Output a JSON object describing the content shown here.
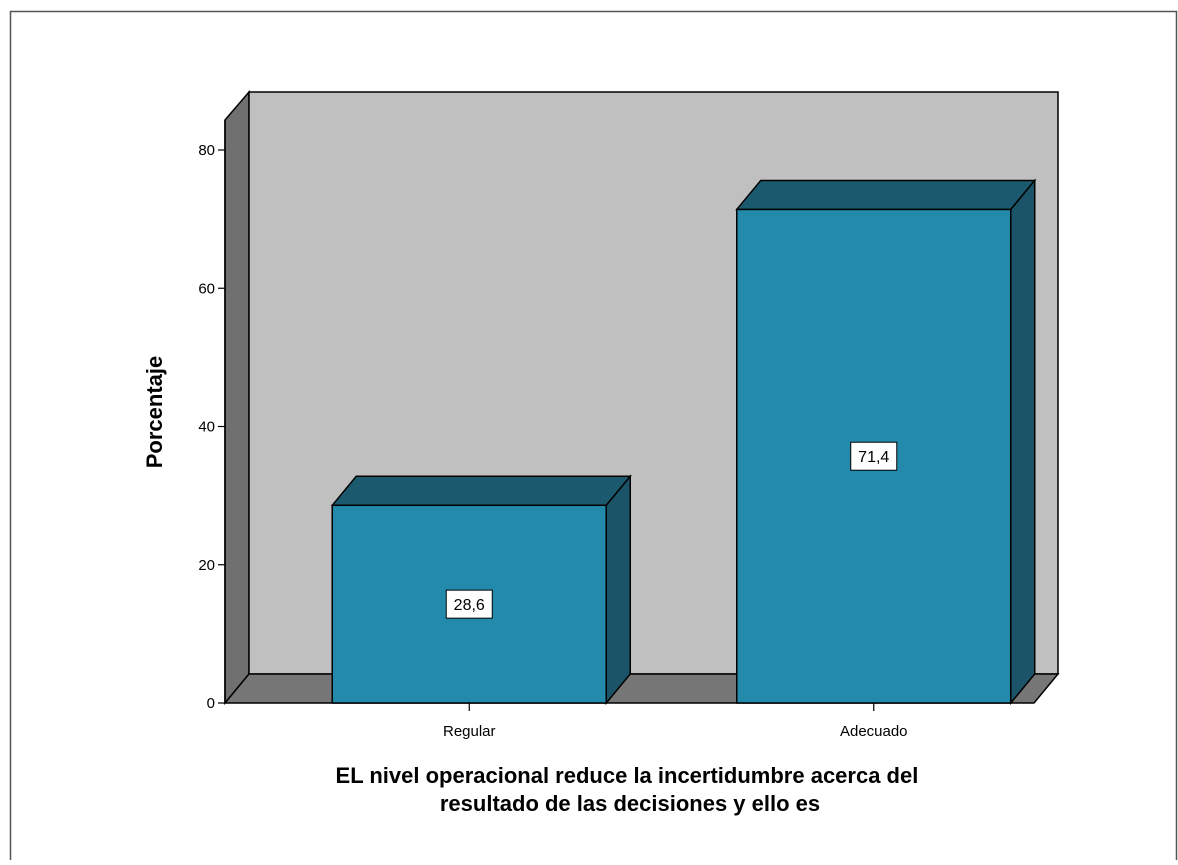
{
  "chart_data": {
    "type": "bar",
    "style": "3d",
    "categories": [
      "Regular",
      "Adecuado"
    ],
    "values": [
      28.6,
      71.4
    ],
    "data_labels": [
      "28,6",
      "71,4"
    ],
    "ylabel": "Porcentaje",
    "xlabel": "EL nivel operacional reduce la incertidumbre acerca del resultado de las decisiones y ello es",
    "xlabel_lines": [
      "EL nivel operacional reduce la incertidumbre acerca del",
      "resultado de las decisiones y ello es"
    ],
    "ylim": [
      0,
      80
    ],
    "yticks": [
      0,
      20,
      40,
      60,
      80
    ],
    "ytick_labels": [
      "0",
      "20",
      "40",
      "60",
      "80"
    ],
    "grid": false,
    "legend": "none",
    "colors": {
      "bar_front": "#248aac",
      "bar_top": "#1b5a6e",
      "bar_side": "#1b5468",
      "wall": "#c0c0c0",
      "floor": "#777777",
      "side_wall": "#707070"
    }
  }
}
